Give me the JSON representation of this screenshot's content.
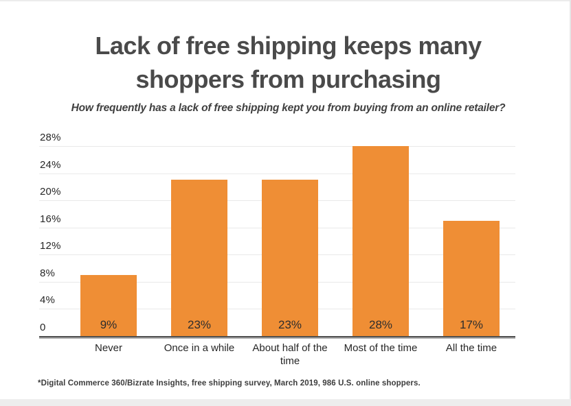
{
  "chart_data": {
    "type": "bar",
    "title": "Lack of free shipping keeps many shoppers from purchasing",
    "subtitle": "How frequently has a lack of free shipping kept you from buying from an online retailer?",
    "categories": [
      "Never",
      "Once in a while",
      "About half of the time",
      "Most of the time",
      "All the time"
    ],
    "values": [
      9,
      23,
      23,
      28,
      17
    ],
    "value_labels": [
      "9%",
      "23%",
      "23%",
      "28%",
      "17%"
    ],
    "y_ticks": [
      {
        "value": 28,
        "label": "28%"
      },
      {
        "value": 24,
        "label": "24%"
      },
      {
        "value": 20,
        "label": "20%"
      },
      {
        "value": 16,
        "label": "16%"
      },
      {
        "value": 12,
        "label": "12%"
      },
      {
        "value": 8,
        "label": "8%"
      },
      {
        "value": 4,
        "label": "4%"
      },
      {
        "value": 0,
        "label": "0"
      }
    ],
    "ylim": [
      0,
      28
    ],
    "xlabel": "",
    "ylabel": "",
    "grid": true,
    "legend": false,
    "bar_color": "#EF8E35",
    "source_note": "*Digital Commerce 360/Bizrate Insights, free shipping survey, March 2019, 986 U.S. online shoppers."
  }
}
